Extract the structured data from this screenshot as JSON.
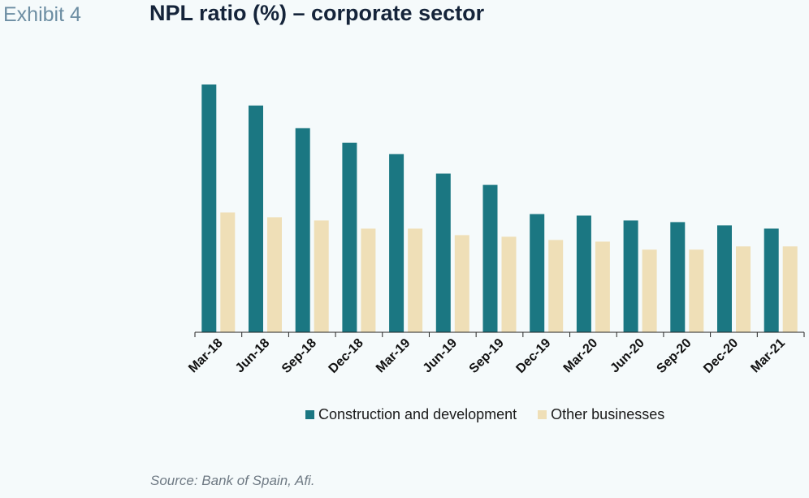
{
  "header": {
    "exhibit": "Exhibit 4",
    "title": "NPL ratio (%) – corporate sector"
  },
  "source": "Source: Bank of Spain, Afi.",
  "colors": {
    "construction": "#1b7782",
    "other": "#efdfb7",
    "axis": "#222222"
  },
  "chart_data": {
    "type": "bar",
    "title": "NPL ratio (%) – corporate sector",
    "xlabel": "",
    "ylabel": "",
    "ylim": [
      0,
      16
    ],
    "grid": false,
    "legend_position": "bottom",
    "categories": [
      "Mar-18",
      "Jun-18",
      "Sep-18",
      "Dec-18",
      "Mar-19",
      "Jun-19",
      "Sep-19",
      "Dec-19",
      "Mar-20",
      "Jun-20",
      "Sep-20",
      "Dec-20",
      "Mar-21"
    ],
    "series": [
      {
        "name": "Construction and development",
        "color_key": "construction",
        "values": [
          15.3,
          14.0,
          12.6,
          11.7,
          11.0,
          9.8,
          9.1,
          7.3,
          7.2,
          6.9,
          6.8,
          6.6,
          6.4
        ]
      },
      {
        "name": "Other businesses",
        "color_key": "other",
        "values": [
          7.4,
          7.1,
          6.9,
          6.4,
          6.4,
          6.0,
          5.9,
          5.7,
          5.6,
          5.1,
          5.1,
          5.3,
          5.3
        ]
      }
    ]
  }
}
